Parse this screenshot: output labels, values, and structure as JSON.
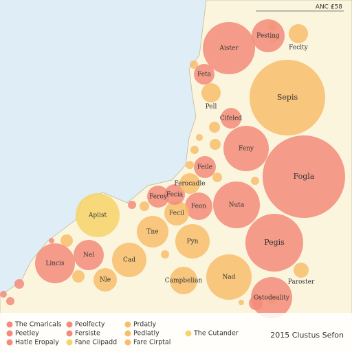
{
  "header": {
    "corner": "ANC ₤58",
    "footer": "2015 Clustus Sefon"
  },
  "bubbles": [
    {
      "label": "Aister",
      "color": "#f28b7a"
    },
    {
      "label": "Sepis",
      "color": "#f7bd6c"
    },
    {
      "label": "Feny",
      "color": "#f28b7a"
    },
    {
      "label": "Fogla",
      "color": "#f28b7a"
    },
    {
      "label": "Nuta",
      "color": "#f28b7a"
    },
    {
      "label": "Pegis",
      "color": "#f28b7a"
    },
    {
      "label": "Nad",
      "color": "#f7bd6c"
    },
    {
      "label": "Lincis",
      "color": "#f28b7a"
    },
    {
      "label": "Nel",
      "color": "#f28b7a"
    },
    {
      "label": "Cad",
      "color": "#f7bd6c"
    },
    {
      "label": "Tne",
      "color": "#f7bd6c"
    },
    {
      "label": "Pyn",
      "color": "#f7bd6c"
    },
    {
      "label": "Aplist",
      "color": "#f6d46a"
    },
    {
      "label": "Feta",
      "color": "#f28b7a"
    },
    {
      "label": "Pell",
      "color": "#f7bd6c"
    },
    {
      "label": "Feon",
      "color": "#f28b7a"
    },
    {
      "label": "Feile",
      "color": "#f28b7a"
    },
    {
      "label": "Fecil",
      "color": "#f7bd6c"
    },
    {
      "label": "Fecia",
      "color": "#f28b7a"
    },
    {
      "label": "Feroy",
      "color": "#f28b7a"
    },
    {
      "label": "Campbelian",
      "color": "#f7bd6c"
    },
    {
      "label": "Nle",
      "color": "#f7bd6c"
    },
    {
      "label": "Ostodeality",
      "color": "#f28b7a"
    },
    {
      "label": "Feclty",
      "color": "#f7bd6c"
    },
    {
      "label": "Ferocadle",
      "color": "#f7bd6c"
    },
    {
      "label": "Cifeled",
      "color": "#f28b7a"
    },
    {
      "label": "Paroster",
      "color": "#f7bd6c"
    },
    {
      "label": "Pesting",
      "color": "#f28b7a"
    }
  ],
  "legend": [
    {
      "label": "The Cmaricals",
      "color": "#f28b7a"
    },
    {
      "label": "Peolfecty",
      "color": "#f28b7a"
    },
    {
      "label": "Prdatly",
      "color": "#f7bd6c"
    },
    {
      "label": "Peetley",
      "color": "#f28b7a"
    },
    {
      "label": "Fersiste",
      "color": "#f28b7a"
    },
    {
      "label": "Pedlatly",
      "color": "#f7bd6c"
    },
    {
      "label": "The Cutander",
      "color": "#f6d46a"
    },
    {
      "label": "Hatle Eropaly",
      "color": "#f28b7a"
    },
    {
      "label": "Fane Ciipadd",
      "color": "#f6d46a"
    },
    {
      "label": "Fare Cirptal",
      "color": "#f7bd6c"
    }
  ]
}
